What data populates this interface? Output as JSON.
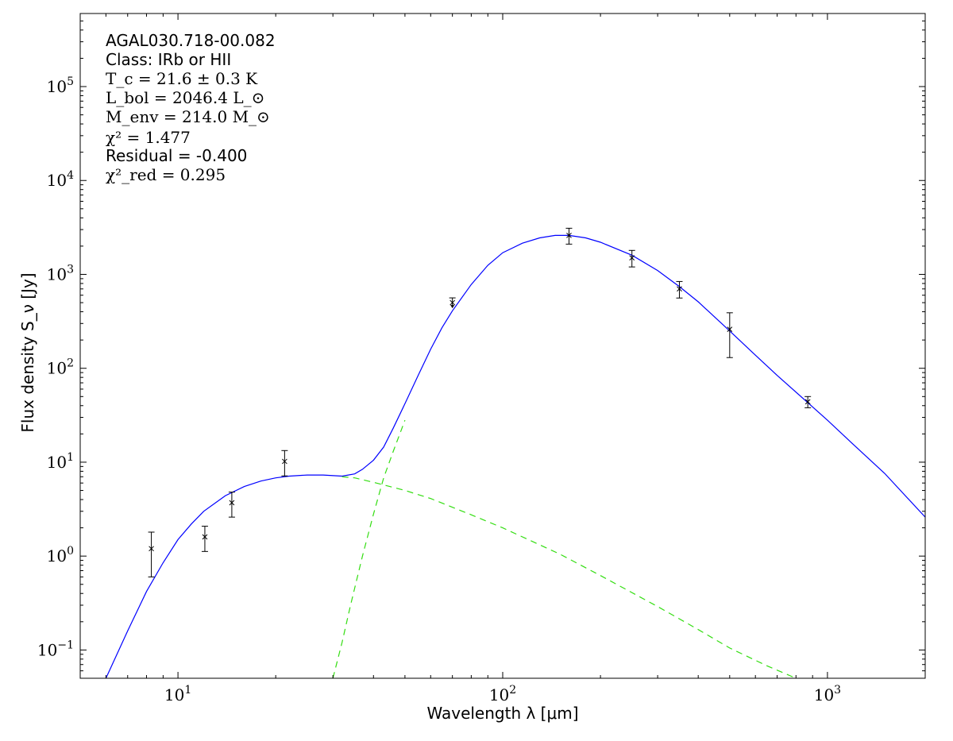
{
  "chart_data": {
    "type": "scatter",
    "title": "",
    "xlabel": "Wavelength λ [μm]",
    "ylabel": "Flux density S_ν [Jy]",
    "xscale": "log",
    "yscale": "log",
    "xlim": [
      5,
      2000
    ],
    "ylim": [
      0.05,
      600000
    ],
    "grid": false,
    "x_major_ticks": [
      {
        "value": 10,
        "label": "10^1"
      },
      {
        "value": 100,
        "label": "10^2"
      },
      {
        "value": 1000,
        "label": "10^3"
      }
    ],
    "y_major_ticks": [
      {
        "value": 0.1,
        "label": "10^-1"
      },
      {
        "value": 1,
        "label": "10^0"
      },
      {
        "value": 10,
        "label": "10^1"
      },
      {
        "value": 100,
        "label": "10^2"
      },
      {
        "value": 1000,
        "label": "10^3"
      },
      {
        "value": 10000,
        "label": "10^4"
      },
      {
        "value": 100000,
        "label": "10^5"
      }
    ],
    "annotations": [
      "AGAL030.718-00.082",
      "Class: IRb or HII",
      "T_c = 21.6 ± 0.3 K",
      "L_bol = 2046.4 L_⊙",
      "M_env = 214.0 M_⊙",
      "χ² = 1.477",
      "Residual = -0.400",
      "χ²_red = 0.295"
    ],
    "measurements": [
      {
        "x": 8.28,
        "y": 1.2,
        "ylo": 0.6,
        "yhi": 1.8
      },
      {
        "x": 12.1,
        "y": 1.6,
        "ylo": 1.12,
        "yhi": 2.08
      },
      {
        "x": 14.65,
        "y": 3.7,
        "ylo": 2.6,
        "yhi": 4.8
      },
      {
        "x": 21.3,
        "y": 10.2,
        "ylo": 7.14,
        "yhi": 13.3
      },
      {
        "x": 70,
        "y": 500,
        "upper_limit": true
      },
      {
        "x": 160,
        "y": 2600,
        "ylo": 2100,
        "yhi": 3100
      },
      {
        "x": 250,
        "y": 1500,
        "ylo": 1200,
        "yhi": 1800
      },
      {
        "x": 350,
        "y": 700,
        "ylo": 560,
        "yhi": 840
      },
      {
        "x": 500,
        "y": 260,
        "ylo": 130,
        "yhi": 390
      },
      {
        "x": 870,
        "y": 44,
        "ylo": 38,
        "yhi": 50
      }
    ],
    "series": [
      {
        "style": "solid",
        "color": "#0000ff",
        "points": [
          [
            6,
            0.05
          ],
          [
            7,
            0.16
          ],
          [
            8,
            0.42
          ],
          [
            9,
            0.85
          ],
          [
            10,
            1.5
          ],
          [
            11,
            2.2
          ],
          [
            12,
            3.0
          ],
          [
            14,
            4.4
          ],
          [
            16,
            5.5
          ],
          [
            18,
            6.3
          ],
          [
            20,
            6.8
          ],
          [
            22,
            7.1
          ],
          [
            25,
            7.3
          ],
          [
            28,
            7.3
          ],
          [
            32,
            7.1
          ],
          [
            35,
            7.5
          ],
          [
            37,
            8.4
          ],
          [
            40,
            10.5
          ],
          [
            43,
            14.5
          ],
          [
            46,
            23
          ],
          [
            50,
            42
          ],
          [
            55,
            85
          ],
          [
            60,
            160
          ],
          [
            65,
            270
          ],
          [
            70,
            410
          ],
          [
            80,
            780
          ],
          [
            90,
            1250
          ],
          [
            100,
            1700
          ],
          [
            115,
            2150
          ],
          [
            130,
            2450
          ],
          [
            145,
            2600
          ],
          [
            160,
            2600
          ],
          [
            180,
            2450
          ],
          [
            200,
            2200
          ],
          [
            250,
            1600
          ],
          [
            300,
            1100
          ],
          [
            350,
            740
          ],
          [
            400,
            510
          ],
          [
            500,
            250
          ],
          [
            600,
            138
          ],
          [
            700,
            84
          ],
          [
            870,
            43
          ],
          [
            1000,
            28
          ],
          [
            1200,
            15.5
          ],
          [
            1500,
            7.6
          ],
          [
            2000,
            2.6
          ]
        ]
      },
      {
        "style": "dashed",
        "color": "#33dd11",
        "points": [
          [
            30,
            0.05
          ],
          [
            32,
            0.12
          ],
          [
            34,
            0.3
          ],
          [
            37,
            1.0
          ],
          [
            40,
            2.8
          ],
          [
            43,
            6.8
          ],
          [
            46,
            13
          ],
          [
            50,
            28
          ]
        ]
      },
      {
        "style": "dashed",
        "color": "#33dd11",
        "points": [
          [
            32,
            7.0
          ],
          [
            35,
            6.8
          ],
          [
            40,
            6.1
          ],
          [
            50,
            5.0
          ],
          [
            60,
            4.1
          ],
          [
            80,
            2.75
          ],
          [
            100,
            2.0
          ],
          [
            150,
            1.05
          ],
          [
            200,
            0.62
          ],
          [
            300,
            0.29
          ],
          [
            400,
            0.165
          ],
          [
            500,
            0.105
          ],
          [
            650,
            0.068
          ],
          [
            800,
            0.05
          ]
        ]
      }
    ]
  }
}
